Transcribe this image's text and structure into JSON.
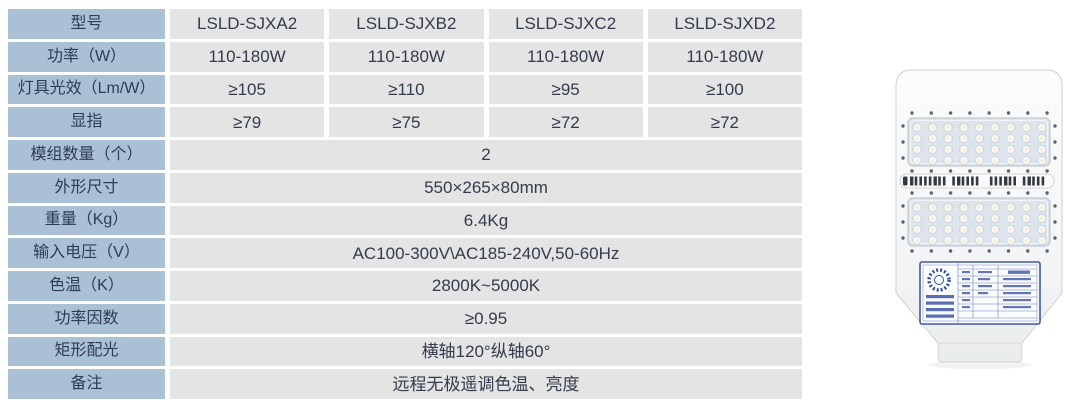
{
  "table": {
    "colors": {
      "header_bg": "#a9c0d5",
      "header_text": "#2e3c54",
      "cell_bg": "#e4e4e4",
      "cell_text": "#333b4c"
    },
    "rows": [
      {
        "label": "型号",
        "cells": [
          "LSLD-SJXA2",
          "LSLD-SJXB2",
          "LSLD-SJXC2",
          "LSLD-SJXD2"
        ]
      },
      {
        "label": "功率（W）",
        "cells": [
          "110-180W",
          "110-180W",
          "110-180W",
          "110-180W"
        ]
      },
      {
        "label": "灯具光效（Lm/W）",
        "cells": [
          "≥105",
          "≥110",
          "≥95",
          "≥100"
        ]
      },
      {
        "label": "显指",
        "cells": [
          "≥79",
          "≥75",
          "≥72",
          "≥72"
        ]
      },
      {
        "label": "模组数量（个）",
        "merged": "2"
      },
      {
        "label": "外形尺寸",
        "merged": "550×265×80mm"
      },
      {
        "label": "重量（Kg）",
        "merged": "6.4Kg"
      },
      {
        "label": "输入电压（V）",
        "merged": "AC100-300V\\AC185-240V,50-60Hz"
      },
      {
        "label": "色温（K）",
        "merged": "2800K~5000K"
      },
      {
        "label": "功率因数",
        "merged": "≥0.95"
      },
      {
        "label": "矩形配光",
        "merged": "横轴120°纵轴60°"
      },
      {
        "label": "备注",
        "merged": "远程无极遥调色温、亮度"
      }
    ]
  },
  "product": {
    "description": "LED street light, front view, two LED modules with vent grille and certification label"
  }
}
